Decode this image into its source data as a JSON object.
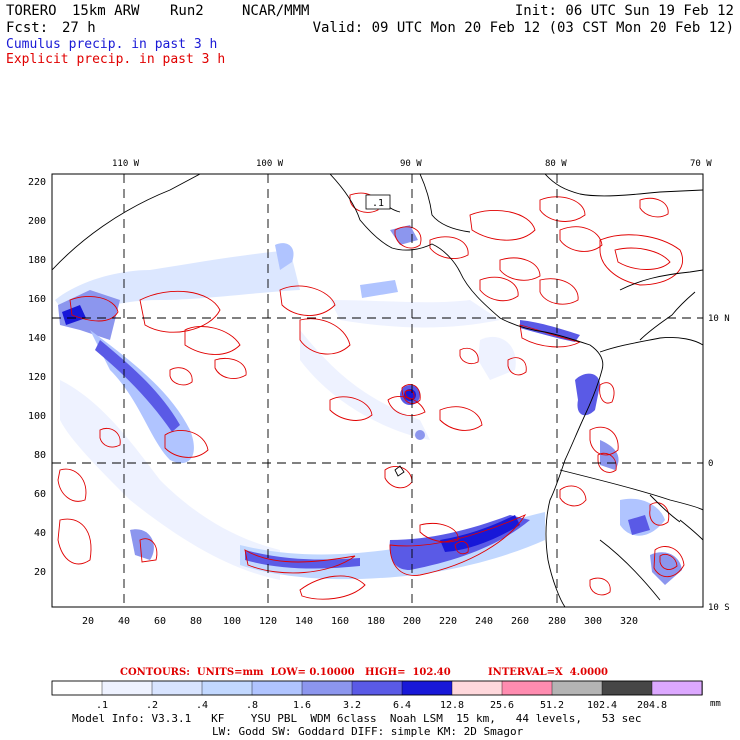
{
  "header": {
    "model": "TORERO",
    "resolution": "15km ARW",
    "run": "Run2",
    "org": "NCAR/MMM",
    "init": "Init: 06 UTC Sun 19 Feb 12",
    "fcst_label": "Fcst:",
    "fcst_hours": "27 h",
    "valid": "Valid: 09 UTC Mon 20 Feb 12 (03 CST Mon 20 Feb 12)"
  },
  "legend": {
    "cumulus": "Cumulus precip. in past 3 h",
    "explicit": "Explicit precip. in past 3 h",
    "cumulus_color": "#1a1ad6",
    "explicit_color": "#e00000"
  },
  "map": {
    "lon_labels": [
      "110 W",
      "100 W",
      "90 W",
      "80 W",
      "70 W"
    ],
    "lat_labels": [
      "10 N",
      "0",
      "10 S"
    ],
    "y_ticks": [
      "220",
      "200",
      "180",
      "160",
      "140",
      "120",
      "100",
      "80",
      "60",
      "40",
      "20"
    ],
    "x_ticks": [
      "20",
      "40",
      "60",
      "80",
      "100",
      "120",
      "140",
      "160",
      "180",
      "200",
      "220",
      "240",
      "260",
      "280",
      "300",
      "320"
    ],
    "contour_label": ".1"
  },
  "contours_info": {
    "units": "CONTOURS:  UNITS=mm  LOW= 0.10000",
    "high": "HIGH=  102.40",
    "interval": "INTERVAL=X  4.0000"
  },
  "colorbar": {
    "labels": [
      ".1",
      ".2",
      ".4",
      ".8",
      "1.6",
      "3.2",
      "6.4",
      "12.8",
      "25.6",
      "51.2",
      "102.4",
      "204.8"
    ],
    "unit": "mm",
    "colors": [
      "#ffffff",
      "#eef2ff",
      "#d8e4ff",
      "#c2d8ff",
      "#b0c4ff",
      "#8c96ee",
      "#5a5ae6",
      "#1818d8",
      "#ffd8dc",
      "#ff8cb0",
      "#b4b4b4",
      "#464646",
      "#dca8ff"
    ]
  },
  "footer": {
    "line1": "Model Info: V3.3.1   KF    YSU PBL  WDM 6class  Noah LSM  15 km,   44 levels,   53 sec",
    "line2": "LW: Godd SW: Goddard DIFF: simple KM: 2D Smagor"
  }
}
